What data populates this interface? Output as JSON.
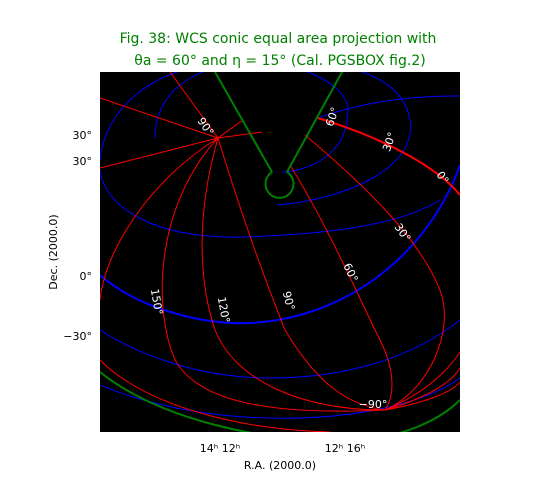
{
  "chart_data": {
    "type": "line",
    "title_line1": "Fig. 38: WCS conic equal area projection with",
    "title_line2": "θa = 60° and η = 15° (Cal. PGSBOX fig.2)",
    "xlabel": "R.A. (2000.0)",
    "ylabel": "Dec. (2000.0)",
    "x_tick_labels": [
      "14ʰ  12ʰ",
      "12ʰ 16ʰ"
    ],
    "y_tick_labels": [
      "30°",
      "30°",
      "0°",
      "−30°"
    ],
    "background": "#000000",
    "colors": {
      "title": "#008000",
      "meridians": "#ff0000",
      "parallels": "#0000ff",
      "boundary": "#008000",
      "curve_labels": "#ffffff"
    },
    "grid": true,
    "meridian_labels": [
      "90°",
      "60°",
      "30°",
      "0°",
      "30°",
      "60°",
      "150°",
      "120°",
      "90°"
    ],
    "parallel_labels": [
      "−90°"
    ],
    "parameters": {
      "theta_a_deg": 60,
      "eta_deg": 15
    }
  }
}
